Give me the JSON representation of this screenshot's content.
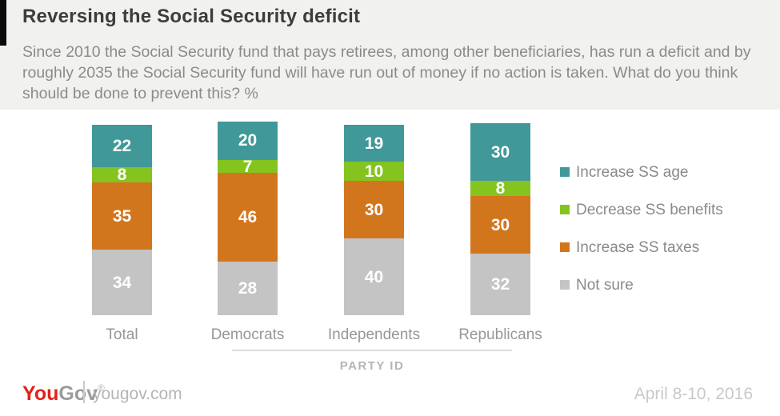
{
  "header": {
    "title": "Reversing the Social Security deficit",
    "subtitle": "Since 2010 the Social Security fund that pays retirees, among other beneficiaries, has run a deficit and by roughly 2035 the Social Security fund will have run out of money if no action is taken. What do you think should be done to prevent this? %"
  },
  "chart_data": {
    "type": "bar",
    "stacked": true,
    "orientation": "vertical",
    "unit": "%",
    "categories": [
      "Total",
      "Democrats",
      "Independents",
      "Republicans"
    ],
    "series": [
      {
        "name": "Increase SS age",
        "color": "#419899",
        "values": [
          22,
          20,
          19,
          30
        ]
      },
      {
        "name": "Decrease SS benefits",
        "color": "#85c41f",
        "values": [
          8,
          7,
          10,
          8
        ]
      },
      {
        "name": "Increase SS taxes",
        "color": "#d2761e",
        "values": [
          35,
          46,
          30,
          30
        ]
      },
      {
        "name": "Not sure",
        "color": "#c4c4c4",
        "values": [
          34,
          28,
          40,
          32
        ]
      }
    ],
    "xlabel": "PARTY ID",
    "legend_position": "right",
    "value_labels": true,
    "value_label_color": "#ffffff"
  },
  "footer": {
    "logo_part1": "You",
    "logo_part2": "Gov",
    "logo_mark": "®",
    "site": "yougov.com",
    "date": "April 8-10, 2016"
  }
}
